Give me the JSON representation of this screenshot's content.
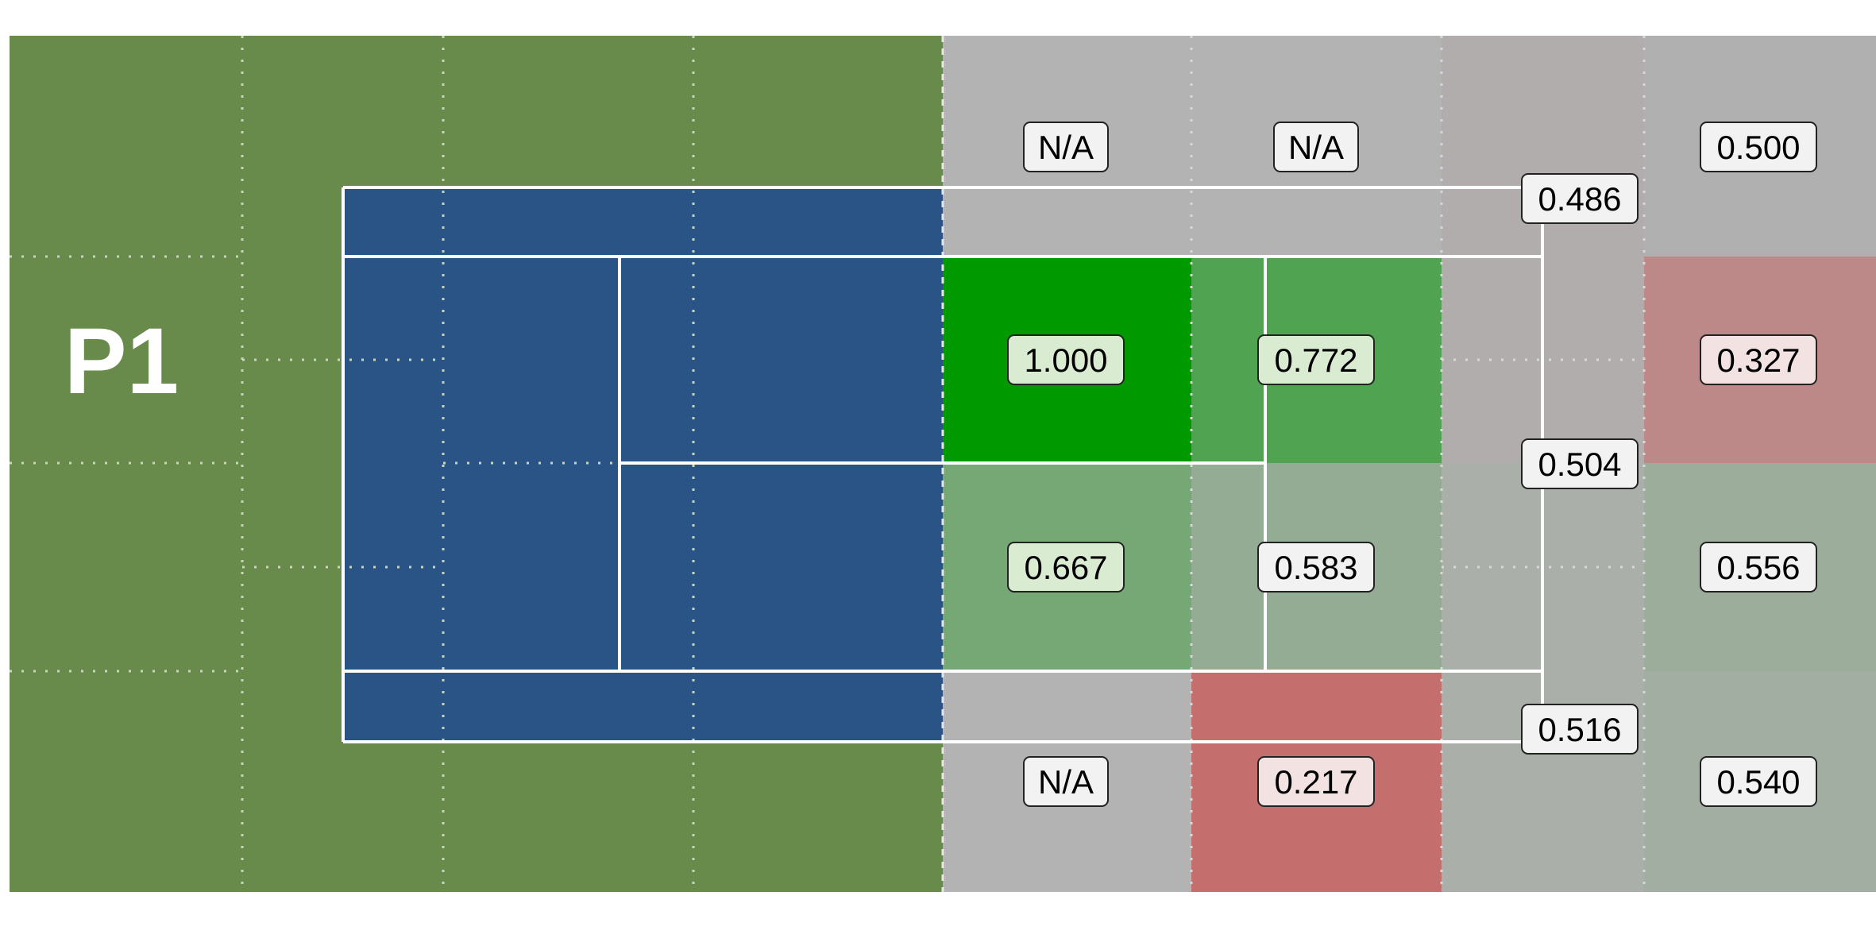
{
  "chart_data": {
    "type": "heatmap",
    "title": "",
    "player_label": "P1",
    "na_label": "N/A",
    "colors": {
      "surround": "#688b4c",
      "court_near": "#2b5486",
      "court_lines": "#ffffff",
      "grid_lines": "#c9d6bf",
      "na": "#b3b3b3",
      "label_box": "#f2f2f2",
      "high": "#009900",
      "mid": "#b0b0b0",
      "low": "#c56a6a"
    },
    "zones": [
      {
        "id": "top-deep-1",
        "value": null,
        "label": "N/A"
      },
      {
        "id": "top-deep-2",
        "value": null,
        "label": "N/A"
      },
      {
        "id": "top-wide-upper",
        "value": 0.486,
        "label": "0.486"
      },
      {
        "id": "top-far",
        "value": 0.5,
        "label": "0.500"
      },
      {
        "id": "service-upper-inner",
        "value": 1.0,
        "label": "1.000"
      },
      {
        "id": "service-upper-outer",
        "value": 0.772,
        "label": "0.772"
      },
      {
        "id": "baseline-middle",
        "value": 0.504,
        "label": "0.504"
      },
      {
        "id": "far-upper-middle",
        "value": 0.327,
        "label": "0.327"
      },
      {
        "id": "service-lower-inner",
        "value": 0.667,
        "label": "0.667"
      },
      {
        "id": "service-lower-outer",
        "value": 0.583,
        "label": "0.583"
      },
      {
        "id": "far-lower-middle",
        "value": 0.556,
        "label": "0.556"
      },
      {
        "id": "bottom-deep-1",
        "value": null,
        "label": "N/A"
      },
      {
        "id": "bottom-deep-2",
        "value": 0.217,
        "label": "0.217"
      },
      {
        "id": "bottom-wide-lower",
        "value": 0.516,
        "label": "0.516"
      },
      {
        "id": "bottom-far",
        "value": 0.54,
        "label": "0.540"
      }
    ]
  }
}
